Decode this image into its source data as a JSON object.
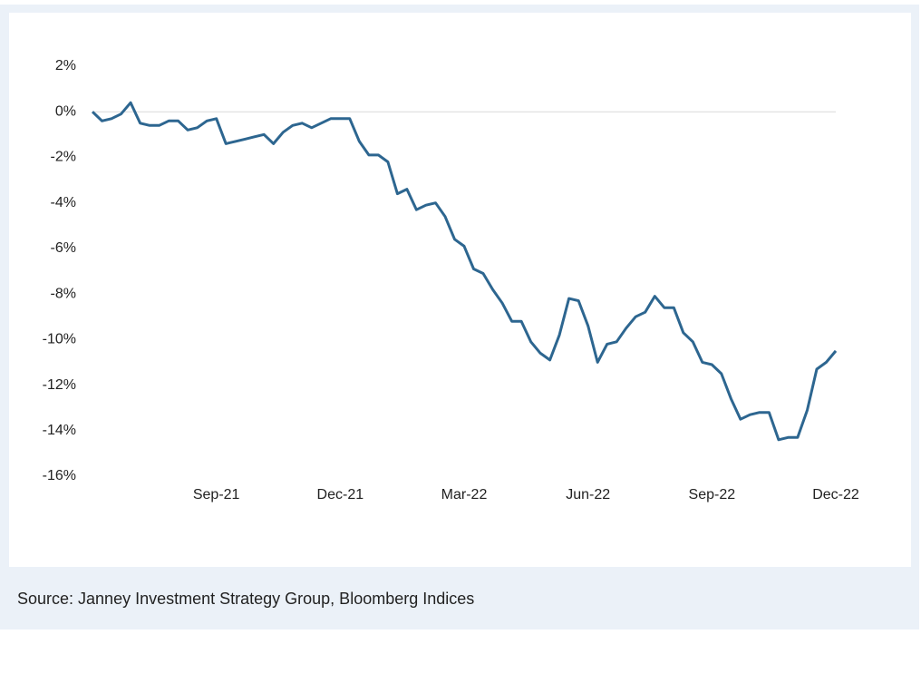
{
  "chart_data": {
    "type": "line",
    "source": "Source: Janney Investment Strategy Group, Bloomberg Indices",
    "categories": [
      null,
      null,
      null,
      null,
      null,
      null,
      null,
      null,
      null,
      null,
      null,
      null,
      null,
      "Sep-21",
      null,
      null,
      null,
      null,
      null,
      null,
      null,
      null,
      null,
      null,
      null,
      null,
      "Dec-21",
      null,
      null,
      null,
      null,
      null,
      null,
      null,
      null,
      null,
      null,
      null,
      null,
      "Mar-22",
      null,
      null,
      null,
      null,
      null,
      null,
      null,
      null,
      null,
      null,
      null,
      null,
      "Jun-22",
      null,
      null,
      null,
      null,
      null,
      null,
      null,
      null,
      null,
      null,
      null,
      null,
      "Sep-22",
      null,
      null,
      null,
      null,
      null,
      null,
      null,
      null,
      null,
      null,
      null,
      null,
      "Dec-22"
    ],
    "series": [
      {
        "color": "#2d6690",
        "values": [
          0,
          -0.4,
          -0.3,
          -0.1,
          0.4,
          -0.5,
          -0.6,
          -0.6,
          -0.4,
          -0.4,
          -0.8,
          -0.7,
          -0.4,
          -0.3,
          -1.4,
          -1.3,
          -1.2,
          -1.1,
          -1.0,
          -1.4,
          -0.9,
          -0.6,
          -0.5,
          -0.7,
          -0.5,
          -0.3,
          -0.3,
          -0.3,
          -1.3,
          -1.9,
          -1.9,
          -2.2,
          -3.6,
          -3.4,
          -4.3,
          -4.1,
          -4.0,
          -4.6,
          -5.6,
          -5.9,
          -6.9,
          -7.1,
          -7.8,
          -8.4,
          -9.2,
          -9.2,
          -10.1,
          -10.6,
          -10.9,
          -9.8,
          -8.2,
          -8.3,
          -9.4,
          -11.0,
          -10.2,
          -10.1,
          -9.5,
          -9.0,
          -8.8,
          -8.1,
          -8.6,
          -8.6,
          -9.7,
          -10.1,
          -11.0,
          -11.1,
          -11.5,
          -12.6,
          -13.5,
          -13.3,
          -13.2,
          -13.2,
          -14.4,
          -14.3,
          -14.3,
          -13.1,
          -11.3,
          -11.0,
          -10.5
        ]
      }
    ],
    "ylim": [
      -16,
      2
    ],
    "yticks": [
      {
        "value": 2,
        "label": "2%"
      },
      {
        "value": 0,
        "label": "0%"
      },
      {
        "value": -2,
        "label": "-2%"
      },
      {
        "value": -4,
        "label": "-4%"
      },
      {
        "value": -6,
        "label": "-6%"
      },
      {
        "value": -8,
        "label": "-8%"
      },
      {
        "value": -10,
        "label": "-10%"
      },
      {
        "value": -12,
        "label": "-12%"
      },
      {
        "value": -14,
        "label": "-14%"
      },
      {
        "value": -16,
        "label": "-16%"
      }
    ],
    "grid": false
  }
}
